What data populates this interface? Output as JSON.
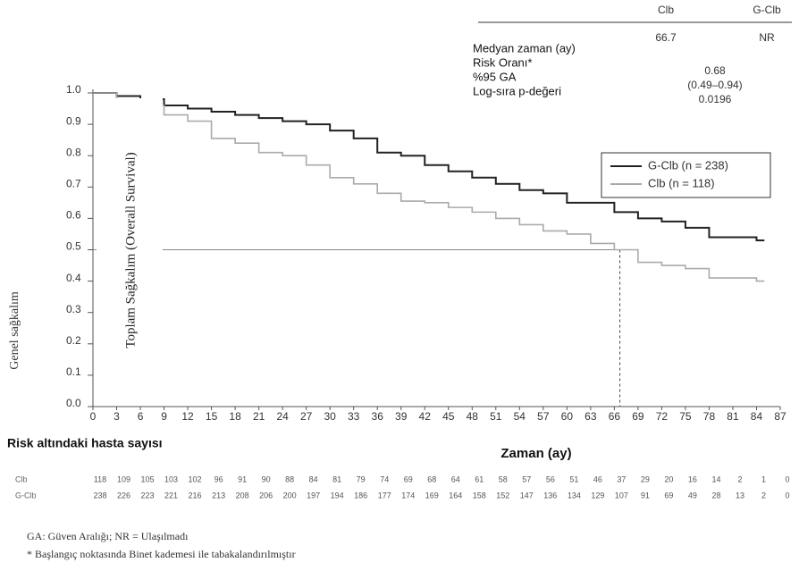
{
  "chart_data": {
    "type": "km",
    "ylabel": "Genel sağkalım",
    "xlabel": "Zaman (ay)",
    "annotation": "Toplam Sağkalım (Overall Survival)",
    "xlim": [
      0,
      87
    ],
    "ylim": [
      0,
      1
    ],
    "xticks": [
      0,
      3,
      6,
      9,
      12,
      15,
      18,
      21,
      24,
      27,
      30,
      33,
      36,
      39,
      42,
      45,
      48,
      51,
      54,
      57,
      60,
      63,
      66,
      69,
      72,
      75,
      78,
      81,
      84,
      87
    ],
    "yticks": [
      {
        "value": 0,
        "label": "0.0"
      },
      0.1,
      0.2,
      0.3,
      0.4,
      0.5,
      0.6,
      0.7,
      0.8,
      0.9,
      {
        "value": 1,
        "label": "1.0"
      }
    ],
    "series": [
      {
        "name": "G-Clb (n = 238)",
        "color": "#222222",
        "x": [
          0,
          3,
          6,
          9,
          12,
          15,
          18,
          21,
          24,
          27,
          30,
          33,
          36,
          39,
          42,
          45,
          48,
          51,
          54,
          57,
          60,
          63,
          66,
          69,
          72,
          75,
          78,
          84,
          85
        ],
        "values": [
          1.0,
          0.99,
          0.98,
          0.96,
          0.95,
          0.94,
          0.93,
          0.92,
          0.91,
          0.9,
          0.88,
          0.855,
          0.81,
          0.8,
          0.77,
          0.75,
          0.73,
          0.71,
          0.69,
          0.68,
          0.65,
          0.65,
          0.62,
          0.6,
          0.59,
          0.57,
          0.54,
          0.53,
          0.53
        ]
      },
      {
        "name": "Clb (n = 118)",
        "color": "#aaaaaa",
        "x": [
          0,
          3,
          6,
          9,
          12,
          15,
          18,
          21,
          24,
          27,
          30,
          33,
          36,
          39,
          42,
          45,
          48,
          51,
          54,
          57,
          60,
          63,
          66,
          69,
          72,
          75,
          78,
          84,
          85
        ],
        "values": [
          1.0,
          0.98,
          0.96,
          0.93,
          0.91,
          0.855,
          0.84,
          0.81,
          0.8,
          0.77,
          0.73,
          0.71,
          0.68,
          0.655,
          0.65,
          0.635,
          0.62,
          0.6,
          0.58,
          0.56,
          0.55,
          0.52,
          0.5,
          0.46,
          0.45,
          0.44,
          0.41,
          0.4,
          0.4
        ]
      }
    ],
    "median_line": 0.5,
    "stats": {
      "headers": [
        "Clb",
        "G-Clb"
      ],
      "rows": [
        {
          "label": "Medyan zaman (ay)",
          "clb": 66.7,
          "gclb": "NR"
        },
        {
          "label": "Risk Oranı*",
          "both": "0.68"
        },
        {
          "label": "%95 GA",
          "both": "(0.49–0.94)"
        },
        {
          "label": "Log-sıra p-değeri",
          "both": "0.0196"
        }
      ]
    },
    "risk_table": {
      "title": "Risk altındaki hasta sayısı",
      "rows": [
        {
          "label": "Clb",
          "counts": [
            118,
            109,
            105,
            103,
            102,
            96,
            91,
            90,
            88,
            84,
            81,
            79,
            74,
            69,
            68,
            64,
            61,
            58,
            57,
            56,
            51,
            46,
            37,
            29,
            20,
            16,
            14,
            2,
            1,
            0
          ]
        },
        {
          "label": "G-Clb",
          "counts": [
            238,
            226,
            223,
            221,
            216,
            213,
            208,
            206,
            200,
            197,
            194,
            186,
            177,
            174,
            169,
            164,
            158,
            152,
            147,
            136,
            134,
            129,
            107,
            91,
            69,
            49,
            28,
            13,
            2,
            0
          ]
        }
      ]
    },
    "footnotes": [
      "GA: Güven Aralığı; NR = Ulaşılmadı",
      "* Başlangıç noktasında Binet kademesi ile tabakalandırılmıştır"
    ]
  }
}
